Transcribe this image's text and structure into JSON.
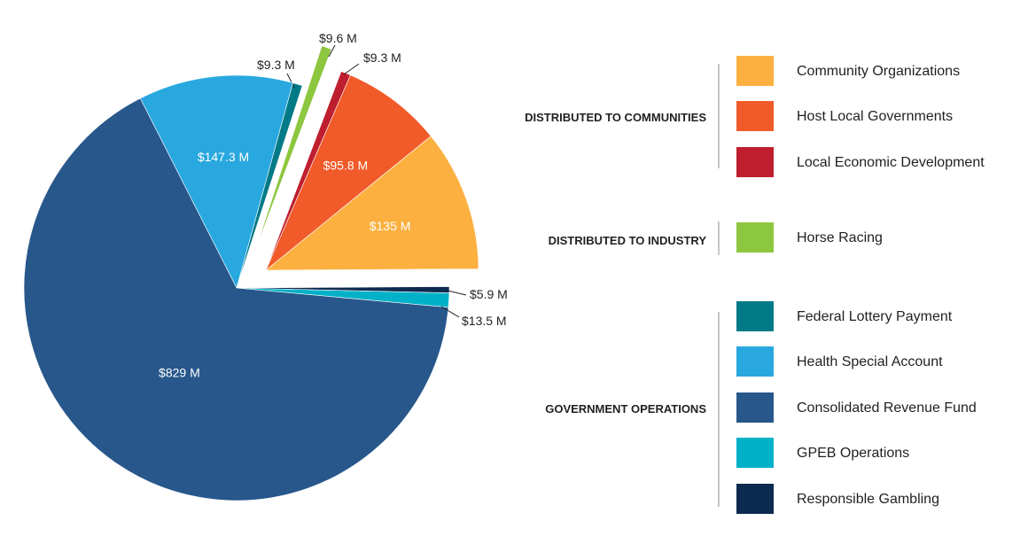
{
  "chart_data": {
    "type": "pie",
    "slices": [
      {
        "name": "Community Organizations",
        "value": 135,
        "label": "$135 M",
        "color": "#fbb040",
        "group": 0
      },
      {
        "name": "Host Local Governments",
        "value": 95.8,
        "label": "$95.8 M",
        "color": "#f15a29",
        "group": 0
      },
      {
        "name": "Local Economic Development",
        "value": 9.3,
        "label": "$9.3 M",
        "color": "#be1e2d",
        "group": 0
      },
      {
        "name": "Horse Racing",
        "value": 9.6,
        "label": "$9.6 M",
        "color": "#8dc63f",
        "group": 1
      },
      {
        "name": "Federal Lottery Payment",
        "value": 9.3,
        "label": "$9.3 M",
        "color": "#007a87",
        "group": 2
      },
      {
        "name": "Health Special Account",
        "value": 147.3,
        "label": "$147.3 M",
        "color": "#29a8e0",
        "group": 2
      },
      {
        "name": "Consolidated Revenue Fund",
        "value": 829,
        "label": "$829 M",
        "color": "#27578b",
        "group": 2
      },
      {
        "name": "GPEB Operations",
        "value": 13.5,
        "label": "$13.5 M",
        "color": "#00b1c8",
        "group": 2
      },
      {
        "name": "Responsible Gambling",
        "value": 5.9,
        "label": "$5.9 M",
        "color": "#0d2a50",
        "group": 2
      }
    ],
    "legend": {
      "placement": "right",
      "groups": [
        {
          "title": "DISTRIBUTED TO COMMUNITIES",
          "items": [
            "Community Organizations",
            "Host Local Governments",
            "Local Economic Development"
          ]
        },
        {
          "title": "DISTRIBUTED TO INDUSTRY",
          "items": [
            "Horse Racing"
          ]
        },
        {
          "title": "GOVERNMENT OPERATIONS",
          "items": [
            "Federal Lottery Payment",
            "Health Special Account",
            "Consolidated Revenue Fund",
            "GPEB Operations",
            "Responsible Gambling"
          ]
        }
      ]
    },
    "exploded_groups": [
      "DISTRIBUTED TO COMMUNITIES",
      "DISTRIBUTED TO INDUSTRY"
    ]
  }
}
